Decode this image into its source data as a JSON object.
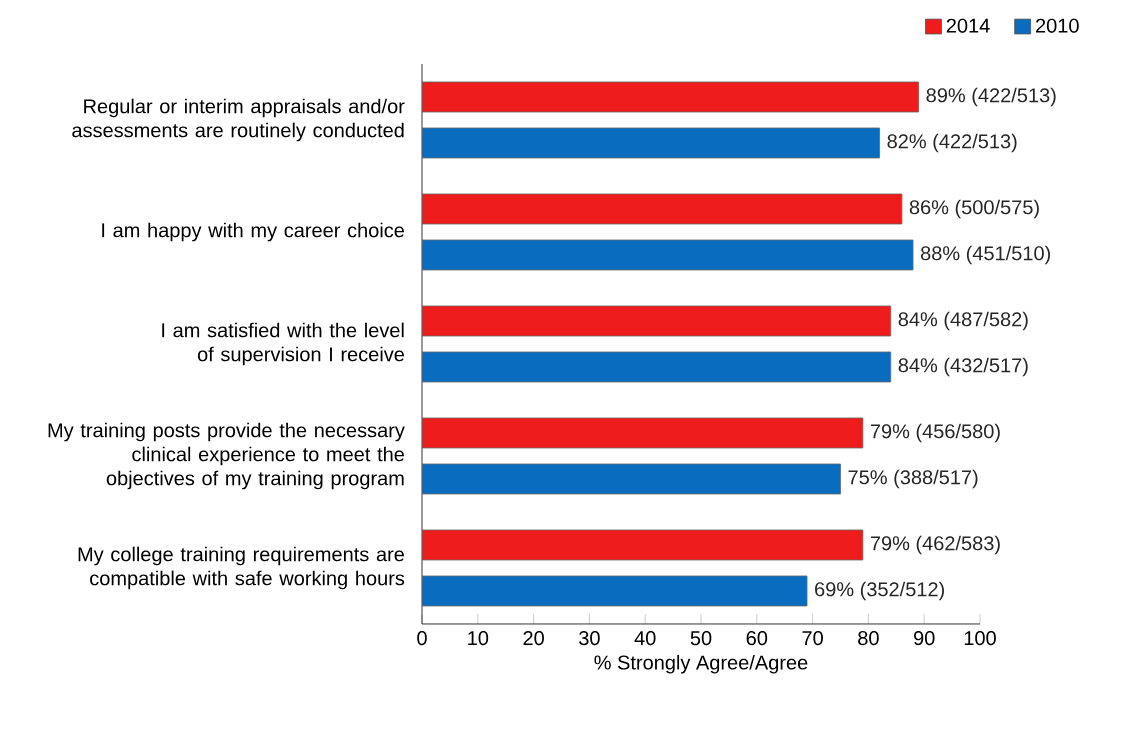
{
  "chart_data": {
    "type": "bar",
    "orientation": "horizontal",
    "xlabel": "% Strongly Agree/Agree",
    "categories": [
      "Regular or interim appraisals and/or assessments are routinely conducted",
      "I am happy with my career choice",
      "I am satisfied with the level of supervision I receive",
      "My training posts provide the necessary clinical experience to meet the objectives of my training program",
      "My college training requirements are compatible with safe working hours"
    ],
    "series": [
      {
        "name": "2014",
        "color": "#ee1c1c",
        "values": [
          89,
          86,
          84,
          79,
          79
        ],
        "value_labels": [
          "89% (422/513)",
          "86% (500/575)",
          "84% (487/582)",
          "79% (456/580)",
          "79% (462/583)"
        ]
      },
      {
        "name": "2010",
        "color": "#0a6cbf",
        "values": [
          82,
          88,
          84,
          75,
          69
        ],
        "value_labels": [
          "82% (422/513)",
          "88% (451/510)",
          "84% (432/517)",
          "75% (388/517)",
          "69% (352/512)"
        ]
      }
    ],
    "xlim": [
      0,
      100
    ],
    "xticks": [
      0,
      10,
      20,
      30,
      40,
      50,
      60,
      70,
      80,
      90,
      100
    ],
    "legend": "top right",
    "grid": false
  }
}
